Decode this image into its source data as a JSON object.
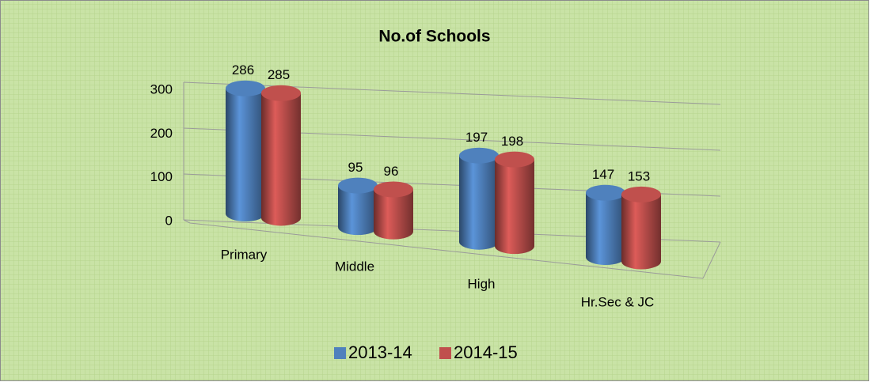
{
  "chart_data": {
    "type": "bar",
    "title": "No.of Schools",
    "categories": [
      "Primary",
      "Middle",
      "High",
      "Hr.Sec & JC"
    ],
    "series": [
      {
        "name": "2013-14",
        "color": "#4f81bd",
        "values": [
          286,
          95,
          197,
          147
        ]
      },
      {
        "name": "2014-15",
        "color": "#c0504d",
        "values": [
          285,
          96,
          198,
          153
        ]
      }
    ],
    "ylim": [
      0,
      300
    ],
    "yticks": [
      0,
      100,
      200,
      300
    ],
    "grid": true,
    "legend": "bottom"
  }
}
